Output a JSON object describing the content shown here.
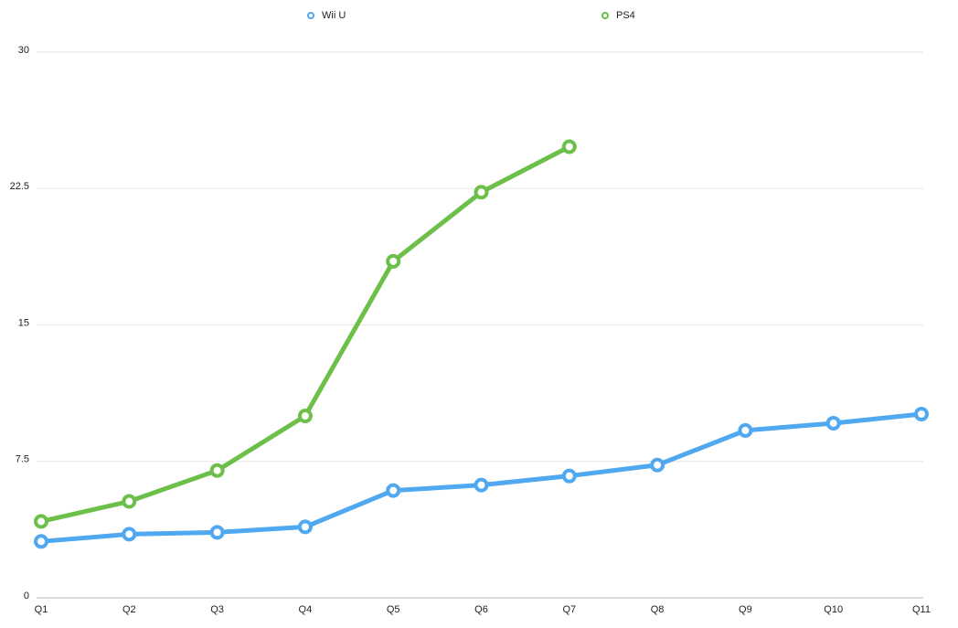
{
  "chart_data": {
    "type": "line",
    "categories": [
      "Q1",
      "Q2",
      "Q3",
      "Q4",
      "Q5",
      "Q6",
      "Q7",
      "Q8",
      "Q9",
      "Q10",
      "Q11"
    ],
    "series": [
      {
        "name": "Wii U",
        "color": "#4fa8f0",
        "values": [
          3.1,
          3.5,
          3.6,
          3.9,
          5.9,
          6.2,
          6.7,
          7.3,
          9.2,
          9.6,
          10.1
        ]
      },
      {
        "name": "PS4",
        "color": "#6cc04a",
        "values": [
          4.2,
          5.3,
          7.0,
          10.0,
          18.5,
          22.3,
          24.8,
          null,
          null,
          null,
          null
        ]
      }
    ],
    "ylim": [
      0,
      30
    ],
    "yticks": [
      0,
      7.5,
      15,
      22.5,
      30
    ],
    "grid": true,
    "legend": "top"
  }
}
